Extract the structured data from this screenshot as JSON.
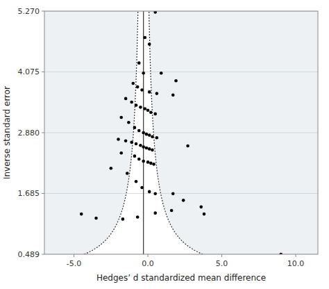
{
  "chart_data": {
    "type": "scatter",
    "x_label": "Hedges’ d standardized mean difference",
    "y_label": "Inverse standard error",
    "x": [
      0.5,
      -0.2,
      0.1,
      -0.6,
      -0.3,
      0.9,
      1.9,
      -1.0,
      -0.7,
      -0.4,
      0.1,
      0.6,
      1.7,
      -1.5,
      -1.1,
      -0.8,
      -0.5,
      -0.2,
      0.0,
      0.2,
      0.5,
      -1.8,
      -1.3,
      -0.9,
      -0.6,
      -0.3,
      -0.1,
      0.1,
      0.3,
      0.6,
      -2.0,
      -1.5,
      -1.1,
      -0.8,
      -0.5,
      -0.3,
      -0.1,
      0.1,
      0.3,
      -1.8,
      -0.9,
      -0.6,
      -0.3,
      0.0,
      0.2,
      0.4,
      2.7,
      -2.5,
      -1.4,
      -0.8,
      -0.4,
      0.1,
      0.5,
      1.7,
      2.4,
      3.6,
      -4.5,
      -3.5,
      -1.7,
      -0.7,
      0.5,
      1.6,
      3.8,
      9.0
    ],
    "values": [
      5.25,
      4.75,
      4.62,
      4.25,
      4.05,
      4.05,
      3.9,
      3.85,
      3.78,
      3.72,
      3.68,
      3.65,
      3.62,
      3.55,
      3.48,
      3.42,
      3.38,
      3.35,
      3.32,
      3.28,
      3.25,
      3.18,
      3.08,
      2.98,
      2.92,
      2.88,
      2.85,
      2.83,
      2.8,
      2.78,
      2.75,
      2.72,
      2.69,
      2.66,
      2.63,
      2.6,
      2.58,
      2.56,
      2.54,
      2.48,
      2.42,
      2.36,
      2.32,
      2.3,
      2.28,
      2.26,
      2.62,
      2.18,
      2.08,
      1.92,
      1.8,
      1.72,
      1.68,
      1.68,
      1.55,
      1.42,
      1.28,
      1.2,
      1.18,
      1.22,
      1.3,
      1.35,
      1.28,
      0.489
    ],
    "color": "#000000",
    "effect_estimate": -0.3,
    "z_critical": 1.96,
    "xlim": [
      -7.0,
      11.5
    ],
    "ylim": [
      0.489,
      5.27
    ],
    "xticks": [
      {
        "value": -5.0,
        "label": "-5.0"
      },
      {
        "value": 0.0,
        "label": "0.0"
      },
      {
        "value": 5.0,
        "label": "5.0"
      },
      {
        "value": 10.0,
        "label": "10.0"
      }
    ],
    "yticks": [
      0.489,
      1.685,
      {
        "value": 2.88,
        "label": "2.880"
      },
      4.075,
      {
        "value": 5.27,
        "label": "5.270"
      }
    ],
    "grid": "y"
  }
}
